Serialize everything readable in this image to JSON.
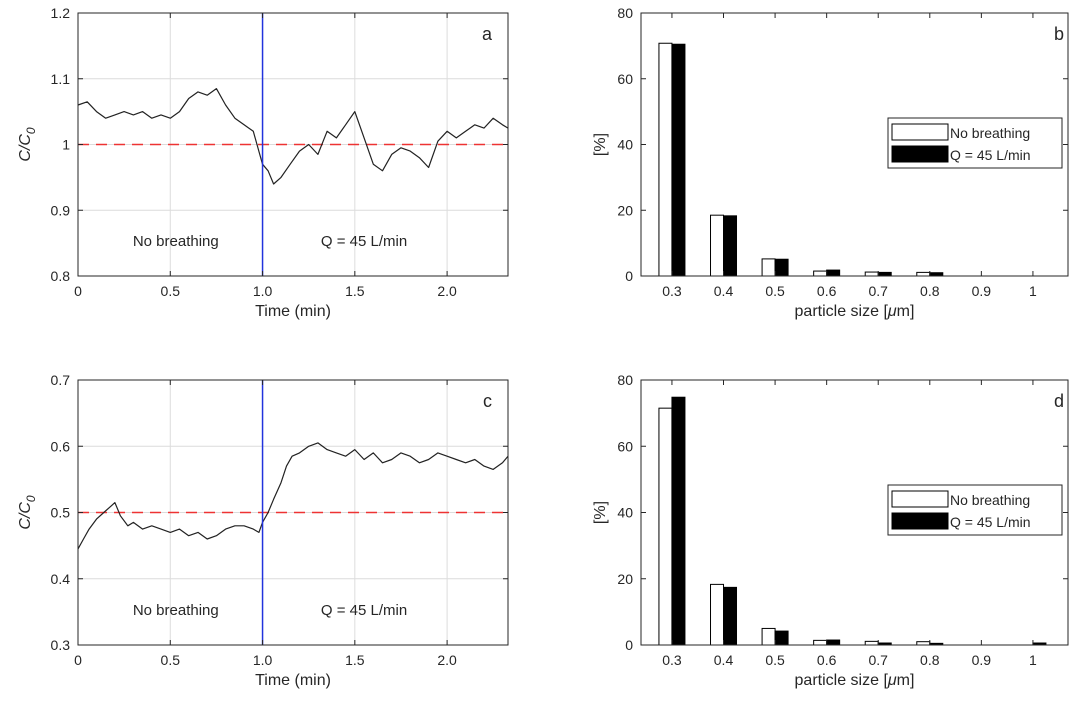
{
  "chart_data": [
    {
      "id": "a",
      "type": "line",
      "panel_label": "a",
      "xlabel": "Time (min)",
      "ylabel": "C/C0",
      "ylabel_main": "C/C",
      "ylabel_sub": "0",
      "xlim": [
        0,
        2.33
      ],
      "ylim": [
        0.8,
        1.2
      ],
      "xticks": [
        0,
        0.5,
        1.0,
        1.5,
        2.0
      ],
      "xtick_labels": [
        "0",
        "0.5",
        "1.0",
        "1.5",
        "2.0"
      ],
      "yticks": [
        0.8,
        0.9,
        1.0,
        1.1,
        1.2
      ],
      "ytick_labels": [
        "0.8",
        "0.9",
        "1",
        "1.1",
        "1.2"
      ],
      "grid": true,
      "reference_line": {
        "y": 1.0,
        "style": "dashed",
        "color": "#ee3333"
      },
      "event_line": {
        "x": 1.0,
        "color": "#2233dd"
      },
      "annotations": [
        "No breathing",
        "Q = 45 L/min"
      ],
      "series": [
        {
          "color": "#222222",
          "x": [
            0.0,
            0.05,
            0.1,
            0.15,
            0.2,
            0.25,
            0.3,
            0.35,
            0.4,
            0.45,
            0.5,
            0.55,
            0.6,
            0.65,
            0.7,
            0.75,
            0.8,
            0.85,
            0.9,
            0.95,
            1.0,
            1.03,
            1.06,
            1.1,
            1.15,
            1.2,
            1.25,
            1.3,
            1.35,
            1.4,
            1.45,
            1.5,
            1.55,
            1.6,
            1.65,
            1.7,
            1.75,
            1.8,
            1.85,
            1.9,
            1.95,
            2.0,
            2.05,
            2.1,
            2.15,
            2.2,
            2.25,
            2.3,
            2.33
          ],
          "y": [
            1.06,
            1.065,
            1.05,
            1.04,
            1.045,
            1.05,
            1.045,
            1.05,
            1.04,
            1.045,
            1.04,
            1.05,
            1.07,
            1.08,
            1.075,
            1.085,
            1.06,
            1.04,
            1.03,
            1.02,
            0.97,
            0.96,
            0.94,
            0.95,
            0.97,
            0.99,
            1.0,
            0.985,
            1.02,
            1.01,
            1.03,
            1.05,
            1.01,
            0.97,
            0.96,
            0.985,
            0.995,
            0.99,
            0.98,
            0.965,
            1.005,
            1.02,
            1.01,
            1.02,
            1.03,
            1.025,
            1.04,
            1.03,
            1.025
          ]
        }
      ]
    },
    {
      "id": "b",
      "type": "bar",
      "panel_label": "b",
      "xlabel": "particle size [μm]",
      "xlabel_main": "particle size [",
      "xlabel_mu": "μ",
      "xlabel_end": "m]",
      "ylabel": "[%]",
      "ylim": [
        0,
        80
      ],
      "yticks": [
        0,
        20,
        40,
        60,
        80
      ],
      "ytick_labels": [
        "0",
        "20",
        "40",
        "60",
        "80"
      ],
      "categories": [
        "0.3",
        "0.4",
        "0.5",
        "0.6",
        "0.7",
        "0.8",
        "0.9",
        "1"
      ],
      "grid": false,
      "legend_position": "right",
      "series": [
        {
          "name": "No breathing",
          "fill": "#ffffff",
          "values": [
            70.8,
            18.5,
            5.2,
            1.5,
            1.2,
            1.1,
            0.0,
            0.0
          ]
        },
        {
          "name": "Q = 45 L/min",
          "fill": "#000000",
          "values": [
            70.5,
            18.3,
            5.1,
            1.8,
            1.1,
            1.0,
            0.0,
            0.0
          ]
        }
      ]
    },
    {
      "id": "c",
      "type": "line",
      "panel_label": "c",
      "xlabel": "Time (min)",
      "ylabel": "C/C0",
      "ylabel_main": "C/C",
      "ylabel_sub": "0",
      "xlim": [
        0,
        2.33
      ],
      "ylim": [
        0.3,
        0.7
      ],
      "xticks": [
        0,
        0.5,
        1.0,
        1.5,
        2.0
      ],
      "xtick_labels": [
        "0",
        "0.5",
        "1.0",
        "1.5",
        "2.0"
      ],
      "yticks": [
        0.3,
        0.4,
        0.5,
        0.6,
        0.7
      ],
      "ytick_labels": [
        "0.3",
        "0.4",
        "0.5",
        "0.6",
        "0.7"
      ],
      "grid": true,
      "reference_line": {
        "y": 0.5,
        "style": "dashed",
        "color": "#ee3333"
      },
      "event_line": {
        "x": 1.0,
        "color": "#2233dd"
      },
      "annotations": [
        "No breathing",
        "Q = 45 L/min"
      ],
      "series": [
        {
          "color": "#222222",
          "x": [
            0.0,
            0.03,
            0.06,
            0.1,
            0.14,
            0.18,
            0.2,
            0.23,
            0.27,
            0.3,
            0.35,
            0.4,
            0.45,
            0.5,
            0.55,
            0.6,
            0.65,
            0.7,
            0.75,
            0.8,
            0.85,
            0.9,
            0.95,
            0.98,
            1.0,
            1.03,
            1.06,
            1.1,
            1.13,
            1.16,
            1.2,
            1.25,
            1.3,
            1.35,
            1.4,
            1.45,
            1.5,
            1.55,
            1.6,
            1.65,
            1.7,
            1.75,
            1.8,
            1.85,
            1.9,
            1.95,
            2.0,
            2.05,
            2.1,
            2.15,
            2.2,
            2.25,
            2.3,
            2.33
          ],
          "y": [
            0.445,
            0.46,
            0.475,
            0.49,
            0.5,
            0.51,
            0.515,
            0.495,
            0.48,
            0.485,
            0.475,
            0.48,
            0.475,
            0.47,
            0.475,
            0.465,
            0.47,
            0.46,
            0.465,
            0.475,
            0.48,
            0.48,
            0.475,
            0.47,
            0.485,
            0.5,
            0.52,
            0.545,
            0.57,
            0.585,
            0.59,
            0.6,
            0.605,
            0.595,
            0.59,
            0.585,
            0.595,
            0.58,
            0.59,
            0.575,
            0.58,
            0.59,
            0.585,
            0.575,
            0.58,
            0.59,
            0.585,
            0.58,
            0.575,
            0.58,
            0.57,
            0.565,
            0.575,
            0.585
          ]
        }
      ]
    },
    {
      "id": "d",
      "type": "bar",
      "panel_label": "d",
      "xlabel": "particle size [μm]",
      "xlabel_main": "particle size [",
      "xlabel_mu": "μ",
      "xlabel_end": "m]",
      "ylabel": "[%]",
      "ylim": [
        0,
        80
      ],
      "yticks": [
        0,
        20,
        40,
        60,
        80
      ],
      "ytick_labels": [
        "0",
        "20",
        "40",
        "60",
        "80"
      ],
      "categories": [
        "0.3",
        "0.4",
        "0.5",
        "0.6",
        "0.7",
        "0.8",
        "0.9",
        "1"
      ],
      "grid": false,
      "legend_position": "right",
      "series": [
        {
          "name": "No breathing",
          "fill": "#ffffff",
          "values": [
            71.5,
            18.3,
            5.0,
            1.4,
            1.1,
            1.0,
            0.0,
            0.0
          ]
        },
        {
          "name": "Q = 45 L/min",
          "fill": "#000000",
          "values": [
            74.8,
            17.4,
            4.2,
            1.5,
            0.6,
            0.5,
            0.0,
            0.6
          ]
        }
      ]
    }
  ]
}
